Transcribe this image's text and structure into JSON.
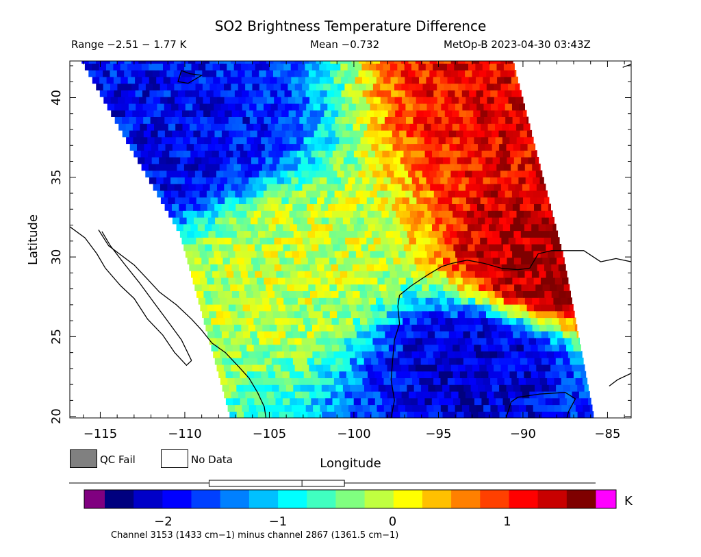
{
  "chart_data": {
    "type": "heatmap",
    "title": "SO2 Brightness Temperature Difference",
    "range_text": "Range −2.51 − 1.77 K",
    "mean_text": "Mean −0.732",
    "satellite_text": "MetOp-B 2023-04-30 03:43Z",
    "xlabel": "Longitude",
    "ylabel": "Latitude",
    "xlim": [
      -116.8,
      -83.6
    ],
    "ylim": [
      19.9,
      42.3
    ],
    "x_ticks": [
      -115,
      -110,
      -105,
      -100,
      -95,
      -90,
      -85
    ],
    "x_tick_labels": [
      "−115",
      "−110",
      "−105",
      "−100",
      "−95",
      "−90",
      "−85"
    ],
    "y_ticks": [
      20,
      25,
      30,
      35,
      40
    ],
    "y_tick_labels": [
      "20",
      "25",
      "30",
      "35",
      "40"
    ],
    "colorbar": {
      "range": [
        -2.51,
        1.77
      ],
      "ticks": [
        -2,
        -1,
        0,
        1
      ],
      "tick_labels": [
        "−2",
        "−1",
        "0",
        "1"
      ],
      "unit": "K",
      "underflow_color": "#800080",
      "overflow_color": "#ff00ff",
      "boxplot": {
        "min": -2.51,
        "q1": -1.6,
        "median": -0.79,
        "q3": -0.42,
        "max": 1.77
      },
      "colors": [
        "#00007f",
        "#0000c8",
        "#0000ff",
        "#0040ff",
        "#0080ff",
        "#00c0ff",
        "#00ffff",
        "#40ffc0",
        "#80ff80",
        "#c0ff40",
        "#ffff00",
        "#ffc000",
        "#ff8000",
        "#ff4000",
        "#ff0000",
        "#c80000",
        "#7f0000"
      ]
    },
    "swath_regions": [
      {
        "description": "high anomaly NE",
        "lat": 39.8,
        "lon": -89.2,
        "value": 1.3
      },
      {
        "description": "high anomaly E",
        "lat": 29.5,
        "lon": -88.8,
        "value": 1.6
      },
      {
        "description": "low anomaly band Gulf",
        "lat": 23.5,
        "lon": -92.5,
        "value": -2.2
      },
      {
        "description": "low NW",
        "lat": 37.5,
        "lon": -110.5,
        "value": -2.0
      },
      {
        "description": "moderate center",
        "lat": 29.5,
        "lon": -103.5,
        "value": -0.1
      }
    ],
    "swath_edges": {
      "west": [
        [
          -116.1,
          42.3
        ],
        [
          -113.3,
          37.0
        ],
        [
          -110.3,
          31.5
        ],
        [
          -107.3,
          19.9
        ]
      ],
      "east": [
        [
          -90.6,
          42.3
        ],
        [
          -87.6,
          30.0
        ],
        [
          -85.8,
          19.9
        ]
      ]
    }
  },
  "legend": {
    "qc_fail_label": "QC Fail",
    "qc_fail_color": "#808080",
    "no_data_label": "No Data",
    "no_data_color": "#ffffff"
  },
  "footer": {
    "channel_text": "Channel 3153 (1433 cm−1) minus channel 2867 (1361.5 cm−1)"
  }
}
